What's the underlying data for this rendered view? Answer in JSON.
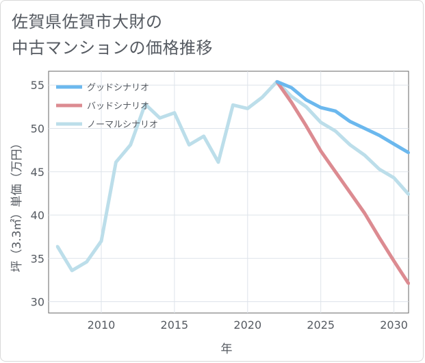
{
  "chart_data": {
    "type": "line",
    "title": "佐賀県佐賀市大財の\n中古マンションの価格推移",
    "xlabel": "年",
    "ylabel": "坪（3.3㎡）単価（万円）",
    "xlim": [
      2006.4,
      2031
    ],
    "ylim": [
      28.7,
      56.6
    ],
    "xticks": [
      2010,
      2015,
      2020,
      2025,
      2030
    ],
    "yticks": [
      30,
      35,
      40,
      45,
      50,
      55
    ],
    "legend_position": "top-left",
    "series": [
      {
        "name": "グッドシナリオ",
        "color": "#6bb8ee",
        "x": [
          2022,
          2023,
          2024,
          2025,
          2026,
          2027,
          2028,
          2029,
          2030,
          2031
        ],
        "y": [
          55.4,
          54.7,
          53.3,
          52.4,
          52.0,
          50.8,
          50.0,
          49.2,
          48.2,
          47.2
        ]
      },
      {
        "name": "バッドシナリオ",
        "color": "#dc8b91",
        "x": [
          2022,
          2023,
          2024,
          2025,
          2026,
          2027,
          2028,
          2029,
          2030,
          2031
        ],
        "y": [
          55.4,
          53.0,
          50.3,
          47.4,
          45.0,
          42.6,
          40.2,
          37.4,
          34.7,
          32.1
        ]
      },
      {
        "name": "ノーマルシナリオ",
        "color": "#bcdeea",
        "x": [
          2007,
          2008,
          2009,
          2010,
          2011,
          2012,
          2013,
          2014,
          2015,
          2016,
          2017,
          2018,
          2019,
          2020,
          2021,
          2022,
          2023,
          2024,
          2025,
          2026,
          2027,
          2028,
          2029,
          2030,
          2031
        ],
        "y": [
          36.4,
          33.6,
          34.6,
          37.0,
          46.1,
          48.1,
          52.8,
          51.2,
          51.8,
          48.1,
          49.1,
          46.1,
          52.7,
          52.3,
          53.6,
          55.4,
          53.7,
          52.5,
          50.7,
          49.7,
          48.1,
          46.9,
          45.3,
          44.3,
          42.4
        ]
      }
    ]
  }
}
